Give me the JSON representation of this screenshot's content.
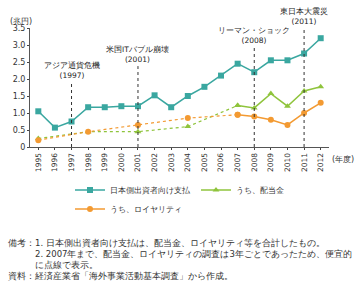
{
  "chart_data": {
    "type": "line",
    "x_label": "(年度)",
    "y_label": "(兆円)",
    "x": [
      1995,
      1996,
      1997,
      1998,
      1999,
      2000,
      2001,
      2002,
      2003,
      2004,
      2005,
      2006,
      2007,
      2008,
      2009,
      2010,
      2011,
      2012
    ],
    "xlim": [
      1994.5,
      2012.5
    ],
    "xticks": [
      1995,
      1996,
      1997,
      1998,
      1999,
      2000,
      2001,
      2002,
      2003,
      2004,
      2005,
      2006,
      2007,
      2008,
      2009,
      2010,
      2011,
      2012
    ],
    "ylim": [
      0,
      3.5
    ],
    "yticks": [
      0,
      0.5,
      {
        "value": 1,
        "label": "1.0"
      },
      1.5,
      {
        "value": 2,
        "label": "2.0"
      },
      2.5,
      {
        "value": 3,
        "label": "3.0"
      },
      3.5
    ],
    "grid": false,
    "legend": "bottom",
    "series": [
      {
        "name": "日本側出資者向け支払",
        "color": "#3aa7a0",
        "marker": "square",
        "line_style": "solid",
        "values": [
          1.05,
          0.57,
          0.75,
          1.17,
          1.17,
          1.2,
          1.2,
          1.52,
          1.17,
          1.5,
          1.77,
          2.1,
          2.45,
          2.2,
          2.55,
          2.55,
          2.75,
          3.2
        ]
      },
      {
        "name": "うち、配当金",
        "color": "#8fc43c",
        "marker": "triangle-up",
        "line_style": "dotted",
        "values": [
          0.25,
          null,
          null,
          0.45,
          null,
          null,
          0.45,
          null,
          null,
          0.6,
          null,
          null,
          1.22,
          1.15,
          1.57,
          1.2,
          1.65,
          1.77
        ]
      },
      {
        "name": "うち、ロイヤリティ",
        "color": "#f39a32",
        "marker": "circle",
        "line_style": "dotted",
        "values": [
          0.2,
          null,
          null,
          0.45,
          null,
          null,
          0.65,
          null,
          null,
          0.85,
          null,
          null,
          0.95,
          0.9,
          0.8,
          0.65,
          1.0,
          1.3
        ]
      }
    ],
    "annotations": [
      {
        "x": 1997,
        "text": "アジア通貨危機",
        "sub": "(1997)"
      },
      {
        "x": 2001,
        "text": "米国ITバブル崩壊",
        "sub": "(2001)"
      },
      {
        "x": 2008,
        "text": "リーマン・ショック",
        "sub": "(2008)"
      },
      {
        "x": 2011,
        "text": "東日本大震災",
        "sub": "(2011)"
      }
    ],
    "notes": [
      {
        "label": "備考：",
        "lines": [
          "1. 日本側出資者向け支払は、配当金、ロイヤリティ等を合計したもの。",
          "2. 2007年まで、配当金、ロイヤリティの調査は3年ごとであったため、便宜的に点線で表示。"
        ]
      },
      {
        "label": "資料：",
        "lines": [
          "経済産業省「海外事業活動基本調査」から作成。"
        ]
      }
    ]
  }
}
